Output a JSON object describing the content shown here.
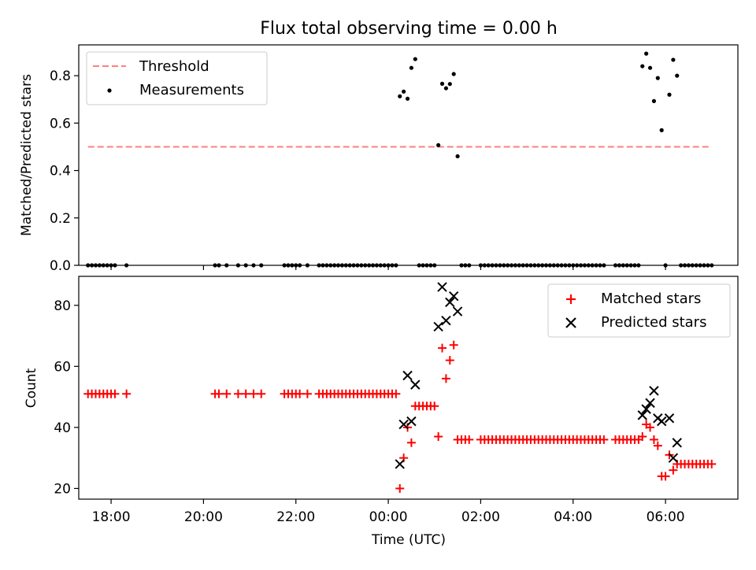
{
  "title": "Flux total observing time = 0.00 h",
  "chart_data": [
    {
      "type": "scatter",
      "panel": "top",
      "title": "Flux total observing time = 0.00 h",
      "xlabel": "",
      "ylabel": "Matched/Predicted stars",
      "xlim": [
        "17:18",
        "07:34"
      ],
      "ylim": [
        0,
        0.93
      ],
      "y_ticks": [
        "0.0",
        "0.2",
        "0.4",
        "0.6",
        "0.8"
      ],
      "legend": {
        "position": "top-left"
      },
      "colors": {
        "threshold": "#ff7f7f",
        "measurements": "#000000"
      },
      "series": [
        {
          "name": "Threshold",
          "kind": "dashed-line",
          "points": [
            [
              "17:30",
              0.5
            ],
            [
              "07:00",
              0.5
            ]
          ]
        },
        {
          "name": "Measurements",
          "kind": "points",
          "points": [
            [
              "17:30",
              0
            ],
            [
              "17:35",
              0
            ],
            [
              "17:40",
              0
            ],
            [
              "17:45",
              0
            ],
            [
              "17:50",
              0
            ],
            [
              "17:55",
              0
            ],
            [
              "18:00",
              0
            ],
            [
              "18:05",
              0
            ],
            [
              "18:20",
              0
            ],
            [
              "20:15",
              0
            ],
            [
              "20:20",
              0
            ],
            [
              "20:30",
              0
            ],
            [
              "20:45",
              0
            ],
            [
              "20:55",
              0
            ],
            [
              "21:05",
              0
            ],
            [
              "21:15",
              0
            ],
            [
              "21:45",
              0
            ],
            [
              "21:50",
              0
            ],
            [
              "21:55",
              0
            ],
            [
              "22:00",
              0
            ],
            [
              "22:05",
              0
            ],
            [
              "22:15",
              0
            ],
            [
              "22:30",
              0
            ],
            [
              "22:35",
              0
            ],
            [
              "22:40",
              0
            ],
            [
              "22:45",
              0
            ],
            [
              "22:50",
              0
            ],
            [
              "22:55",
              0
            ],
            [
              "23:00",
              0
            ],
            [
              "23:05",
              0
            ],
            [
              "23:10",
              0
            ],
            [
              "23:15",
              0
            ],
            [
              "23:20",
              0
            ],
            [
              "23:25",
              0
            ],
            [
              "23:30",
              0
            ],
            [
              "23:35",
              0
            ],
            [
              "23:40",
              0
            ],
            [
              "23:45",
              0
            ],
            [
              "23:50",
              0
            ],
            [
              "23:55",
              0
            ],
            [
              "00:00",
              0
            ],
            [
              "00:05",
              0
            ],
            [
              "00:10",
              0
            ],
            [
              "00:15",
              0.713
            ],
            [
              "00:20",
              0.733
            ],
            [
              "00:25",
              0.703
            ],
            [
              "00:30",
              0.833
            ],
            [
              "00:35",
              0.87
            ],
            [
              "00:40",
              0
            ],
            [
              "00:45",
              0
            ],
            [
              "00:50",
              0
            ],
            [
              "00:55",
              0
            ],
            [
              "01:00",
              0
            ],
            [
              "01:05",
              0.507
            ],
            [
              "01:10",
              0.766
            ],
            [
              "01:15",
              0.747
            ],
            [
              "01:20",
              0.765
            ],
            [
              "01:25",
              0.807
            ],
            [
              "01:30",
              0.46
            ],
            [
              "01:35",
              0
            ],
            [
              "01:40",
              0
            ],
            [
              "01:45",
              0
            ],
            [
              "02:00",
              0
            ],
            [
              "02:05",
              0
            ],
            [
              "02:10",
              0
            ],
            [
              "02:15",
              0
            ],
            [
              "02:20",
              0
            ],
            [
              "02:25",
              0
            ],
            [
              "02:30",
              0
            ],
            [
              "02:35",
              0
            ],
            [
              "02:40",
              0
            ],
            [
              "02:45",
              0
            ],
            [
              "02:50",
              0
            ],
            [
              "02:55",
              0
            ],
            [
              "03:00",
              0
            ],
            [
              "03:05",
              0
            ],
            [
              "03:10",
              0
            ],
            [
              "03:15",
              0
            ],
            [
              "03:20",
              0
            ],
            [
              "03:25",
              0
            ],
            [
              "03:30",
              0
            ],
            [
              "03:35",
              0
            ],
            [
              "03:40",
              0
            ],
            [
              "03:45",
              0
            ],
            [
              "03:50",
              0
            ],
            [
              "03:55",
              0
            ],
            [
              "04:00",
              0
            ],
            [
              "04:05",
              0
            ],
            [
              "04:10",
              0
            ],
            [
              "04:15",
              0
            ],
            [
              "04:20",
              0
            ],
            [
              "04:25",
              0
            ],
            [
              "04:30",
              0
            ],
            [
              "04:35",
              0
            ],
            [
              "04:40",
              0
            ],
            [
              "04:55",
              0
            ],
            [
              "05:00",
              0
            ],
            [
              "05:05",
              0
            ],
            [
              "05:10",
              0
            ],
            [
              "05:15",
              0
            ],
            [
              "05:20",
              0
            ],
            [
              "05:25",
              0
            ],
            [
              "05:30",
              0.84
            ],
            [
              "05:35",
              0.893
            ],
            [
              "05:40",
              0.833
            ],
            [
              "05:45",
              0.693
            ],
            [
              "05:50",
              0.79
            ],
            [
              "05:55",
              0.57
            ],
            [
              "06:00",
              0
            ],
            [
              "06:05",
              0.72
            ],
            [
              "06:10",
              0.867
            ],
            [
              "06:15",
              0.8
            ],
            [
              "06:20",
              0
            ],
            [
              "06:25",
              0
            ],
            [
              "06:30",
              0
            ],
            [
              "06:35",
              0
            ],
            [
              "06:40",
              0
            ],
            [
              "06:45",
              0
            ],
            [
              "06:50",
              0
            ],
            [
              "06:55",
              0
            ],
            [
              "07:00",
              0
            ]
          ]
        }
      ]
    },
    {
      "type": "scatter",
      "panel": "bottom",
      "xlabel": "Time (UTC)",
      "ylabel": "Count",
      "xlim": [
        "17:18",
        "07:34"
      ],
      "ylim": [
        16.5,
        89.5
      ],
      "x_ticks": [
        "18:00",
        "20:00",
        "22:00",
        "00:00",
        "02:00",
        "04:00",
        "06:00"
      ],
      "y_ticks": [
        "20",
        "40",
        "60",
        "80"
      ],
      "legend": {
        "position": "top-right"
      },
      "colors": {
        "matched": "#ff0000",
        "predicted": "#000000"
      },
      "series": [
        {
          "name": "Matched stars",
          "marker": "plus",
          "points": [
            [
              "17:30",
              51
            ],
            [
              "17:35",
              51
            ],
            [
              "17:40",
              51
            ],
            [
              "17:45",
              51
            ],
            [
              "17:50",
              51
            ],
            [
              "17:55",
              51
            ],
            [
              "18:00",
              51
            ],
            [
              "18:05",
              51
            ],
            [
              "18:20",
              51
            ],
            [
              "20:15",
              51
            ],
            [
              "20:20",
              51
            ],
            [
              "20:30",
              51
            ],
            [
              "20:45",
              51
            ],
            [
              "20:55",
              51
            ],
            [
              "21:05",
              51
            ],
            [
              "21:15",
              51
            ],
            [
              "21:45",
              51
            ],
            [
              "21:50",
              51
            ],
            [
              "21:55",
              51
            ],
            [
              "22:00",
              51
            ],
            [
              "22:05",
              51
            ],
            [
              "22:15",
              51
            ],
            [
              "22:30",
              51
            ],
            [
              "22:35",
              51
            ],
            [
              "22:40",
              51
            ],
            [
              "22:45",
              51
            ],
            [
              "22:50",
              51
            ],
            [
              "22:55",
              51
            ],
            [
              "23:00",
              51
            ],
            [
              "23:05",
              51
            ],
            [
              "23:10",
              51
            ],
            [
              "23:15",
              51
            ],
            [
              "23:20",
              51
            ],
            [
              "23:25",
              51
            ],
            [
              "23:30",
              51
            ],
            [
              "23:35",
              51
            ],
            [
              "23:40",
              51
            ],
            [
              "23:45",
              51
            ],
            [
              "23:50",
              51
            ],
            [
              "23:55",
              51
            ],
            [
              "00:00",
              51
            ],
            [
              "00:05",
              51
            ],
            [
              "00:10",
              51
            ],
            [
              "00:15",
              20
            ],
            [
              "00:20",
              30
            ],
            [
              "00:25",
              40
            ],
            [
              "00:30",
              35
            ],
            [
              "00:35",
              47
            ],
            [
              "00:40",
              47
            ],
            [
              "00:45",
              47
            ],
            [
              "00:50",
              47
            ],
            [
              "00:55",
              47
            ],
            [
              "01:00",
              47
            ],
            [
              "01:05",
              37
            ],
            [
              "01:10",
              66
            ],
            [
              "01:15",
              56
            ],
            [
              "01:20",
              62
            ],
            [
              "01:25",
              67
            ],
            [
              "01:30",
              36
            ],
            [
              "01:35",
              36
            ],
            [
              "01:40",
              36
            ],
            [
              "01:45",
              36
            ],
            [
              "02:00",
              36
            ],
            [
              "02:05",
              36
            ],
            [
              "02:10",
              36
            ],
            [
              "02:15",
              36
            ],
            [
              "02:20",
              36
            ],
            [
              "02:25",
              36
            ],
            [
              "02:30",
              36
            ],
            [
              "02:35",
              36
            ],
            [
              "02:40",
              36
            ],
            [
              "02:45",
              36
            ],
            [
              "02:50",
              36
            ],
            [
              "02:55",
              36
            ],
            [
              "03:00",
              36
            ],
            [
              "03:05",
              36
            ],
            [
              "03:10",
              36
            ],
            [
              "03:15",
              36
            ],
            [
              "03:20",
              36
            ],
            [
              "03:25",
              36
            ],
            [
              "03:30",
              36
            ],
            [
              "03:35",
              36
            ],
            [
              "03:40",
              36
            ],
            [
              "03:45",
              36
            ],
            [
              "03:50",
              36
            ],
            [
              "03:55",
              36
            ],
            [
              "04:00",
              36
            ],
            [
              "04:05",
              36
            ],
            [
              "04:10",
              36
            ],
            [
              "04:15",
              36
            ],
            [
              "04:20",
              36
            ],
            [
              "04:25",
              36
            ],
            [
              "04:30",
              36
            ],
            [
              "04:35",
              36
            ],
            [
              "04:40",
              36
            ],
            [
              "04:55",
              36
            ],
            [
              "05:00",
              36
            ],
            [
              "05:05",
              36
            ],
            [
              "05:10",
              36
            ],
            [
              "05:15",
              36
            ],
            [
              "05:20",
              36
            ],
            [
              "05:25",
              36
            ],
            [
              "05:30",
              37
            ],
            [
              "05:35",
              41
            ],
            [
              "05:40",
              40
            ],
            [
              "05:45",
              36
            ],
            [
              "05:50",
              34
            ],
            [
              "05:55",
              24
            ],
            [
              "06:00",
              24
            ],
            [
              "06:05",
              31
            ],
            [
              "06:10",
              26
            ],
            [
              "06:15",
              28
            ],
            [
              "06:20",
              28
            ],
            [
              "06:25",
              28
            ],
            [
              "06:30",
              28
            ],
            [
              "06:35",
              28
            ],
            [
              "06:40",
              28
            ],
            [
              "06:45",
              28
            ],
            [
              "06:50",
              28
            ],
            [
              "06:55",
              28
            ],
            [
              "07:00",
              28
            ]
          ]
        },
        {
          "name": "Predicted stars",
          "marker": "x",
          "points": [
            [
              "00:15",
              28
            ],
            [
              "00:20",
              41
            ],
            [
              "00:25",
              57
            ],
            [
              "00:30",
              42
            ],
            [
              "00:35",
              54
            ],
            [
              "01:05",
              73
            ],
            [
              "01:10",
              86
            ],
            [
              "01:15",
              75
            ],
            [
              "01:20",
              81
            ],
            [
              "01:25",
              83
            ],
            [
              "01:30",
              78
            ],
            [
              "05:30",
              44
            ],
            [
              "05:35",
              46
            ],
            [
              "05:40",
              48
            ],
            [
              "05:45",
              52
            ],
            [
              "05:50",
              43
            ],
            [
              "05:55",
              42
            ],
            [
              "06:05",
              43
            ],
            [
              "06:10",
              30
            ],
            [
              "06:15",
              35
            ]
          ]
        }
      ]
    }
  ]
}
